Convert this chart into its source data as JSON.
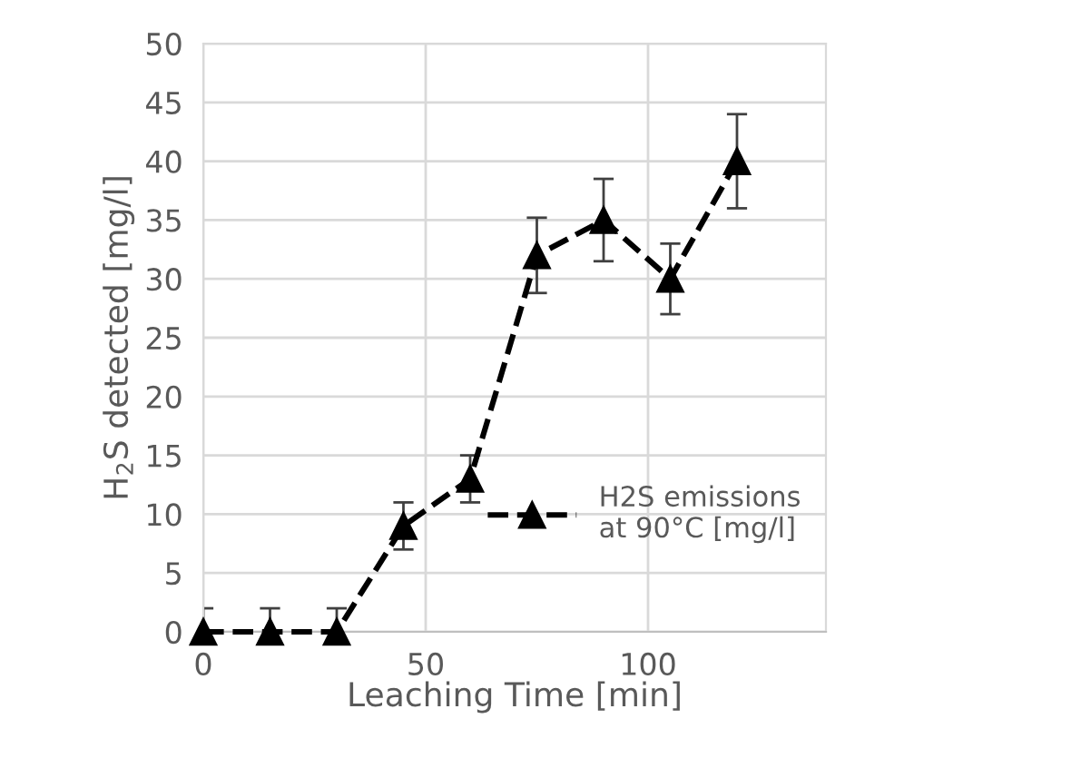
{
  "chart_data": {
    "type": "line",
    "xlabel": "Leaching Time [min]",
    "ylabel": "H$_{2}$S detected [mg/l]",
    "x": [
      0,
      15,
      30,
      45,
      60,
      75,
      90,
      105,
      120
    ],
    "series": [
      {
        "name": "H2S emissions\nat 90°C [mg/l]",
        "color": "#000000",
        "values": [
          0,
          0,
          0,
          9,
          13,
          32,
          35,
          30,
          40
        ],
        "errors": [
          2,
          2,
          2,
          2,
          2,
          3.2,
          3.5,
          3,
          4
        ]
      }
    ],
    "xlim": [
      0,
      140
    ],
    "xticks": [
      0,
      50,
      100
    ],
    "ylim": [
      0,
      50
    ],
    "yticks": [
      0,
      5,
      10,
      15,
      20,
      25,
      30,
      35,
      40,
      45,
      50
    ],
    "grid": true,
    "legend": "right",
    "marker": "triangle",
    "line_style": "dashed"
  }
}
